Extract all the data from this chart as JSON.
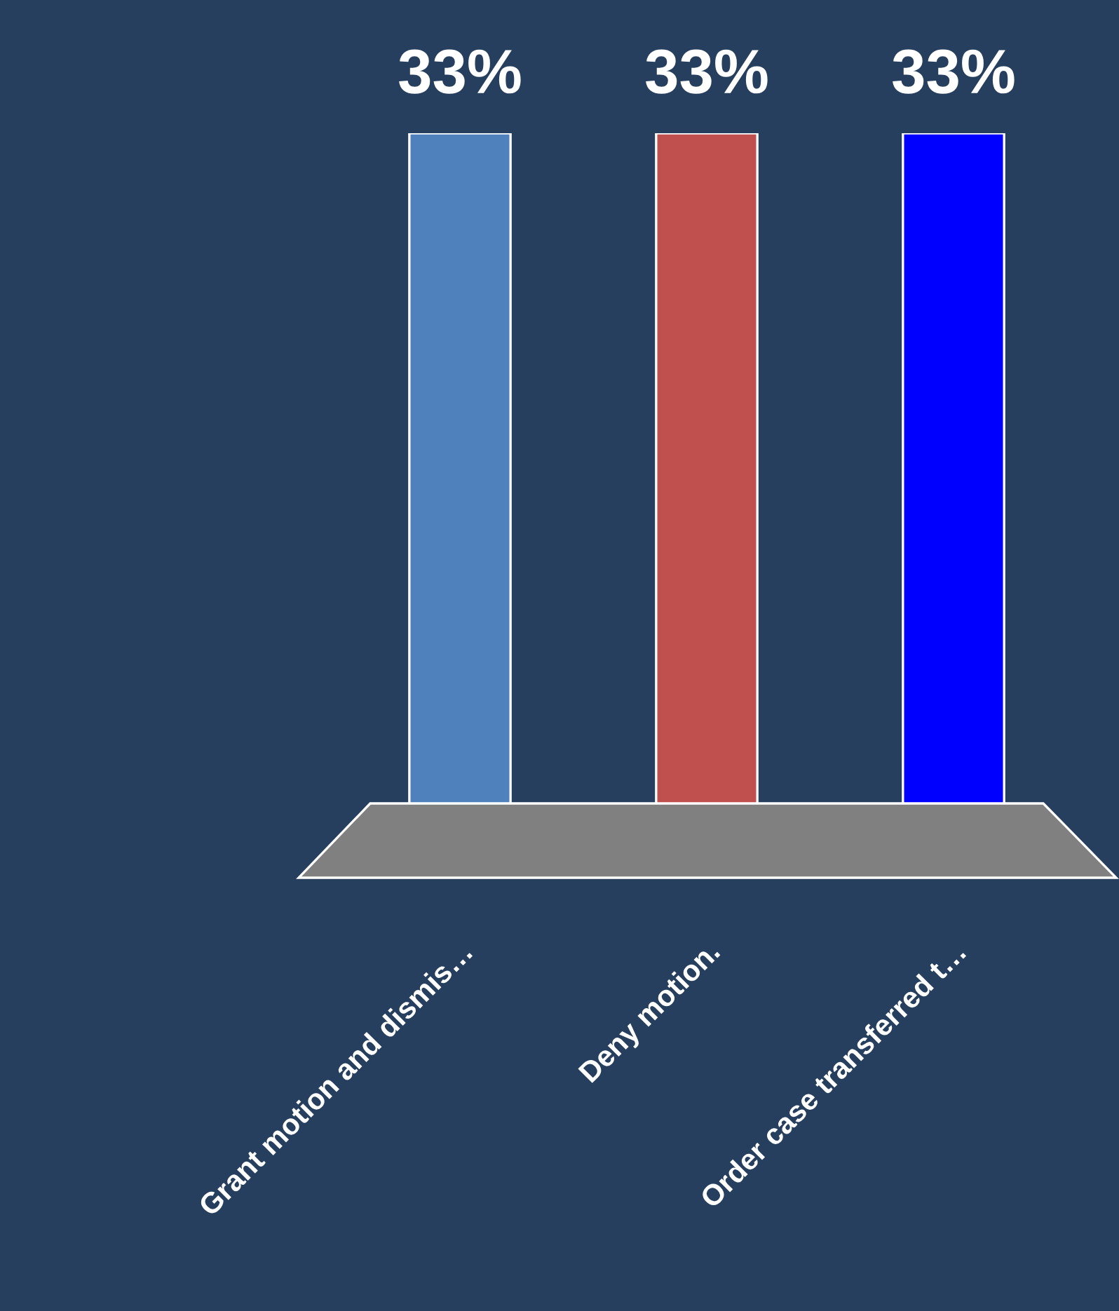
{
  "chart_data": {
    "type": "bar",
    "categories": [
      "Grant motion and dismis…",
      "Deny motion.",
      "Order case transferred t…"
    ],
    "values": [
      33,
      33,
      33
    ],
    "colors": [
      "#4f81bd",
      "#c0504d",
      "#0000ff"
    ],
    "value_labels": [
      "33%",
      "33%",
      "33%"
    ],
    "legend": false
  }
}
